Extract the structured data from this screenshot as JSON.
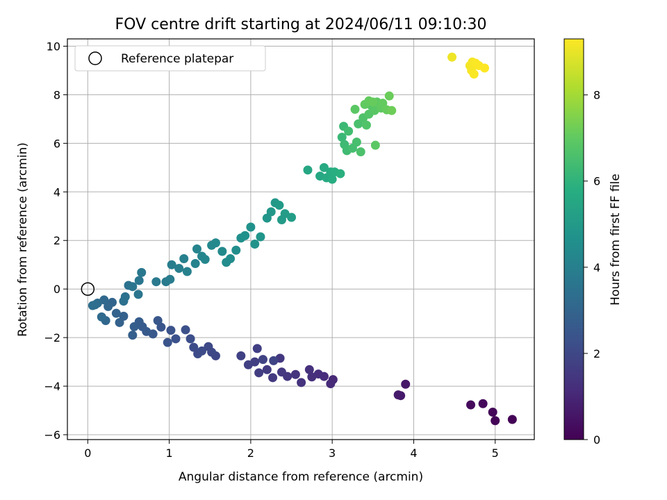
{
  "chart_data": {
    "type": "scatter",
    "title": "FOV centre drift starting at 2024/06/11 09:10:30",
    "xlabel": "Angular distance from reference (arcmin)",
    "ylabel": "Rotation from reference (arcmin)",
    "xlim": [
      -0.25,
      5.48
    ],
    "ylim": [
      -6.2,
      10.3
    ],
    "x_ticks": [
      0,
      1,
      2,
      3,
      4,
      5
    ],
    "y_ticks": [
      -6,
      -4,
      -2,
      0,
      2,
      4,
      6,
      8,
      10
    ],
    "grid": true,
    "legend": {
      "placement": "top-left",
      "entries": [
        "Reference platepar"
      ]
    },
    "reference_point": {
      "label": "Reference platepar",
      "x": 0,
      "y": 0
    },
    "colorbar": {
      "label": "Hours from first FF file",
      "colormap": "viridis",
      "range": [
        0,
        9.3
      ],
      "ticks": [
        0,
        2,
        4,
        6,
        8
      ]
    },
    "points": [
      [
        5.21,
        -5.37,
        0.05
      ],
      [
        5.0,
        -5.42,
        0.1
      ],
      [
        4.97,
        -5.07,
        0.15
      ],
      [
        4.85,
        -4.72,
        0.2
      ],
      [
        4.7,
        -4.77,
        0.25
      ],
      [
        3.9,
        -3.92,
        0.6
      ],
      [
        3.84,
        -4.39,
        0.65
      ],
      [
        3.81,
        -4.36,
        0.7
      ],
      [
        3.01,
        -3.73,
        1.05
      ],
      [
        2.98,
        -3.9,
        1.1
      ],
      [
        2.9,
        -3.6,
        1.15
      ],
      [
        2.83,
        -3.5,
        1.2
      ],
      [
        2.75,
        -3.62,
        1.25
      ],
      [
        2.72,
        -3.32,
        1.3
      ],
      [
        2.62,
        -3.85,
        1.35
      ],
      [
        2.55,
        -3.52,
        1.4
      ],
      [
        2.45,
        -3.6,
        1.45
      ],
      [
        2.38,
        -3.42,
        1.5
      ],
      [
        2.36,
        -2.85,
        1.52
      ],
      [
        2.27,
        -3.65,
        1.55
      ],
      [
        2.2,
        -3.32,
        1.6
      ],
      [
        2.1,
        -3.45,
        1.65
      ],
      [
        2.05,
        -3.0,
        1.7
      ],
      [
        2.08,
        -2.45,
        1.72
      ],
      [
        1.97,
        -3.12,
        1.75
      ],
      [
        1.88,
        -2.75,
        1.8
      ],
      [
        2.15,
        -2.9,
        1.85
      ],
      [
        2.28,
        -2.95,
        1.9
      ],
      [
        1.57,
        -2.75,
        1.95
      ],
      [
        1.52,
        -2.6,
        2.0
      ],
      [
        1.48,
        -2.37,
        2.05
      ],
      [
        1.4,
        -2.55,
        2.1
      ],
      [
        1.35,
        -2.67,
        2.12
      ],
      [
        1.3,
        -2.4,
        2.15
      ],
      [
        1.26,
        -2.05,
        2.2
      ],
      [
        1.2,
        -1.68,
        2.25
      ],
      [
        1.08,
        -2.05,
        2.3
      ],
      [
        1.02,
        -1.7,
        2.35
      ],
      [
        0.98,
        -2.2,
        2.4
      ],
      [
        0.9,
        -1.57,
        2.45
      ],
      [
        0.86,
        -1.3,
        2.5
      ],
      [
        0.8,
        -1.85,
        2.55
      ],
      [
        0.72,
        -1.75,
        2.6
      ],
      [
        0.67,
        -1.55,
        2.65
      ],
      [
        0.63,
        -1.35,
        2.7
      ],
      [
        0.57,
        -1.55,
        2.75
      ],
      [
        0.55,
        -1.9,
        2.8
      ],
      [
        0.44,
        -1.12,
        2.85
      ],
      [
        0.39,
        -1.38,
        2.9
      ],
      [
        0.35,
        -1.0,
        2.95
      ],
      [
        0.3,
        -0.55,
        3.0
      ],
      [
        0.25,
        -0.72,
        3.05
      ],
      [
        0.22,
        -1.3,
        3.1
      ],
      [
        0.2,
        -0.45,
        3.15
      ],
      [
        0.17,
        -1.15,
        3.2
      ],
      [
        0.12,
        -0.58,
        3.25
      ],
      [
        0.09,
        -0.65,
        3.3
      ],
      [
        0.06,
        -0.68,
        3.35
      ],
      [
        0.44,
        -0.5,
        3.4
      ],
      [
        0.46,
        -0.32,
        3.45
      ],
      [
        0.5,
        0.15,
        3.5
      ],
      [
        0.55,
        0.1,
        3.55
      ],
      [
        0.62,
        -0.22,
        3.6
      ],
      [
        0.63,
        0.35,
        3.65
      ],
      [
        0.66,
        0.68,
        3.7
      ],
      [
        0.84,
        0.3,
        3.75
      ],
      [
        0.96,
        0.3,
        3.8
      ],
      [
        1.01,
        0.4,
        3.85
      ],
      [
        1.03,
        1.0,
        3.9
      ],
      [
        1.12,
        0.85,
        3.95
      ],
      [
        1.18,
        1.25,
        4.0
      ],
      [
        1.22,
        0.72,
        4.05
      ],
      [
        1.32,
        1.05,
        4.1
      ],
      [
        1.34,
        1.65,
        4.15
      ],
      [
        1.4,
        1.35,
        4.2
      ],
      [
        1.44,
        1.22,
        4.25
      ],
      [
        1.52,
        1.8,
        4.3
      ],
      [
        1.57,
        1.9,
        4.35
      ],
      [
        1.65,
        1.55,
        4.4
      ],
      [
        1.7,
        1.1,
        4.45
      ],
      [
        1.75,
        1.25,
        4.5
      ],
      [
        1.82,
        1.6,
        4.55
      ],
      [
        1.88,
        2.1,
        4.6
      ],
      [
        1.93,
        2.2,
        4.65
      ],
      [
        2.0,
        2.55,
        4.7
      ],
      [
        2.05,
        1.85,
        4.75
      ],
      [
        2.12,
        2.15,
        4.8
      ],
      [
        2.2,
        2.92,
        4.85
      ],
      [
        2.25,
        3.18,
        4.9
      ],
      [
        2.3,
        3.55,
        4.95
      ],
      [
        2.35,
        3.45,
        5.0
      ],
      [
        2.38,
        2.85,
        5.05
      ],
      [
        2.42,
        3.1,
        5.1
      ],
      [
        2.5,
        2.95,
        5.15
      ],
      [
        2.7,
        4.9,
        5.5
      ],
      [
        2.85,
        4.65,
        5.55
      ],
      [
        2.9,
        5.0,
        5.6
      ],
      [
        2.93,
        4.58,
        5.65
      ],
      [
        2.98,
        4.82,
        5.7
      ],
      [
        3.0,
        4.52,
        5.75
      ],
      [
        3.03,
        4.82,
        5.8
      ],
      [
        3.1,
        4.75,
        5.85
      ],
      [
        3.12,
        6.25,
        6.2
      ],
      [
        3.14,
        6.7,
        6.25
      ],
      [
        3.15,
        5.95,
        6.3
      ],
      [
        3.18,
        5.7,
        6.35
      ],
      [
        3.2,
        6.5,
        6.4
      ],
      [
        3.25,
        5.8,
        6.45
      ],
      [
        3.3,
        6.05,
        6.5
      ],
      [
        3.32,
        6.8,
        6.55
      ],
      [
        3.35,
        5.65,
        6.6
      ],
      [
        3.38,
        7.05,
        6.65
      ],
      [
        3.42,
        6.75,
        6.7
      ],
      [
        3.45,
        7.2,
        6.75
      ],
      [
        3.48,
        7.55,
        6.8
      ],
      [
        3.52,
        7.35,
        6.85
      ],
      [
        3.53,
        5.92,
        6.9
      ],
      [
        3.55,
        7.7,
        6.95
      ],
      [
        3.6,
        7.45,
        7.0
      ],
      [
        3.62,
        7.65,
        7.05
      ],
      [
        3.67,
        7.38,
        7.1
      ],
      [
        3.7,
        7.95,
        7.15
      ],
      [
        3.73,
        7.35,
        7.2
      ],
      [
        3.28,
        7.4,
        6.9
      ],
      [
        3.4,
        7.6,
        7.0
      ],
      [
        3.45,
        7.75,
        7.05
      ],
      [
        3.5,
        7.7,
        7.1
      ],
      [
        4.47,
        9.55,
        9.1
      ],
      [
        4.69,
        9.2,
        9.15
      ],
      [
        4.71,
        9.0,
        9.2
      ],
      [
        4.72,
        9.35,
        9.2
      ],
      [
        4.74,
        8.85,
        9.25
      ],
      [
        4.76,
        9.3,
        9.25
      ],
      [
        4.8,
        9.2,
        9.28
      ],
      [
        4.87,
        9.1,
        9.3
      ]
    ]
  }
}
